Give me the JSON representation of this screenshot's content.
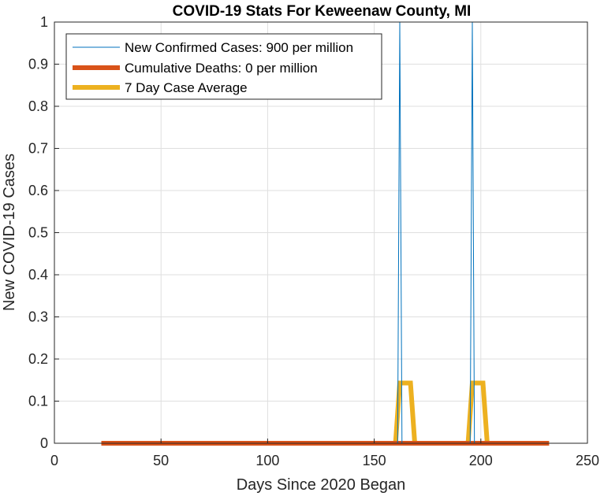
{
  "chart_data": {
    "type": "line",
    "title": "COVID-19 Stats For Keweenaw County, MI",
    "xlabel": "Days Since 2020 Began",
    "ylabel": "New COVID-19 Cases",
    "xlim": [
      0,
      250
    ],
    "ylim": [
      0,
      1
    ],
    "xticks": [
      0,
      50,
      100,
      150,
      200,
      250
    ],
    "yticks": [
      0,
      0.1,
      0.2,
      0.3,
      0.4,
      0.5,
      0.6,
      0.7,
      0.8,
      0.9,
      1
    ],
    "grid": true,
    "legend_location": "top-left",
    "series": [
      {
        "name": "New Confirmed Cases: 900 per million",
        "color": "#0072BD",
        "line_width": "thin",
        "x": [
          22,
          161,
          162,
          163,
          195,
          196,
          197,
          232
        ],
        "y": [
          0,
          0,
          1,
          0,
          0,
          1,
          0,
          0
        ]
      },
      {
        "name": "Cumulative Deaths: 0 per million",
        "color": "#D95319",
        "line_width": "thick",
        "x": [
          22,
          232
        ],
        "y": [
          0,
          0
        ]
      },
      {
        "name": "7 Day Case Average",
        "color": "#EDB120",
        "line_width": "thick",
        "x": [
          22,
          160,
          162,
          167,
          169,
          194,
          196,
          201,
          203,
          232
        ],
        "y": [
          0,
          0,
          0.1429,
          0.1429,
          0,
          0,
          0.1429,
          0.1429,
          0,
          0
        ]
      }
    ]
  }
}
